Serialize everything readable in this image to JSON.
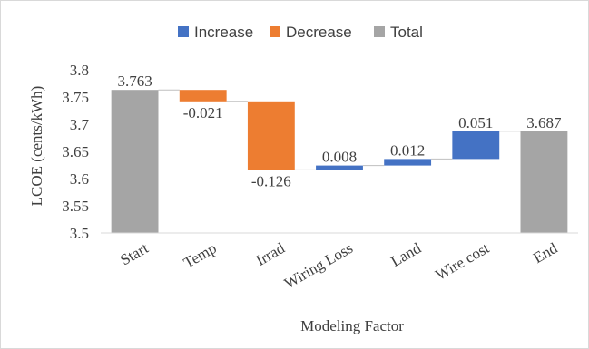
{
  "chart_data": {
    "type": "waterfall",
    "title": "",
    "xlabel": "Modeling Factor",
    "ylabel": "LCOE (cents/kWh)",
    "ylim": [
      3.5,
      3.8
    ],
    "yticks": [
      "3.5",
      "3.55",
      "3.6",
      "3.65",
      "3.7",
      "3.75",
      "3.8"
    ],
    "grid": false,
    "legend_position": "top",
    "legend": [
      {
        "name": "Increase",
        "color": "#4472c4"
      },
      {
        "name": "Decrease",
        "color": "#ed7d31"
      },
      {
        "name": "Total",
        "color": "#a5a5a5"
      }
    ],
    "categories": [
      "Start",
      "Temp",
      "Irrad",
      "Wiring Loss",
      "Land",
      "Wire cost",
      "End"
    ],
    "values": [
      3.763,
      -0.021,
      -0.126,
      0.008,
      0.012,
      0.051,
      3.687
    ],
    "kinds": [
      "total",
      "decrease",
      "decrease",
      "increase",
      "increase",
      "increase",
      "total"
    ],
    "data_labels": [
      "3.763",
      "-0.021",
      "-0.126",
      "0.008",
      "0.012",
      "0.051",
      "3.687"
    ]
  }
}
